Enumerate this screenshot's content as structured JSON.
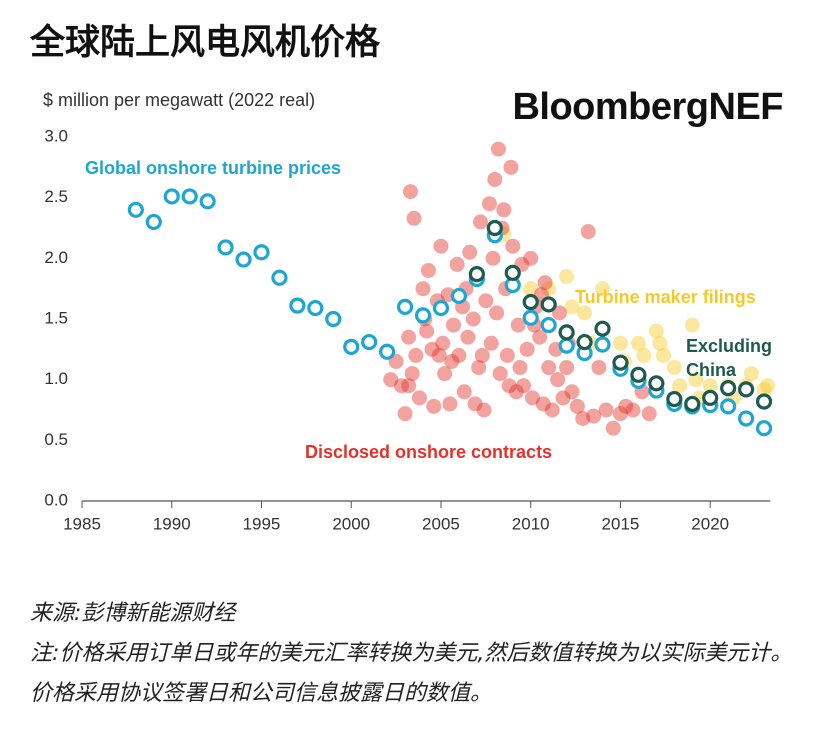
{
  "chart_data": {
    "type": "scatter",
    "title": "全球陆上风电风机价格",
    "y_label": "$ million per megawatt (2022 real)",
    "brand": "BloombergNEF",
    "source": "来源:彭博新能源财经",
    "note": "注:价格采用订单日或年的美元汇率转换为美元,然后数值转换为以实际美元计。价格采用协议签署日和公司信息披露日的数值。",
    "xlim": [
      1985,
      2024
    ],
    "ylim": [
      0,
      3
    ],
    "xticks": [
      1985,
      1990,
      1995,
      2000,
      2005,
      2010,
      2015,
      2020
    ],
    "yticks": [
      {
        "value": 0,
        "label": "0.0"
      },
      0.5,
      {
        "value": 1,
        "label": "1.0"
      },
      1.5,
      {
        "value": 2,
        "label": "2.0"
      },
      2.5,
      {
        "value": 3,
        "label": "3.0"
      }
    ],
    "grid": false,
    "series": [
      {
        "name": "Global onshore turbine prices",
        "color": "#1ea6d3",
        "marker": "open",
        "x": [
          1988,
          1989,
          1990,
          1991,
          1992,
          1993,
          1994,
          1995,
          1996,
          1997,
          1998,
          1999,
          2000,
          2001,
          2002,
          2003,
          2004,
          2005,
          2006,
          2007,
          2008,
          2009,
          2010,
          2011,
          2012,
          2013,
          2014,
          2015,
          2016,
          2017,
          2018,
          2019,
          2020,
          2021,
          2022,
          2023
        ],
        "values": [
          2.4,
          2.3,
          2.51,
          2.51,
          2.47,
          2.09,
          1.99,
          2.05,
          1.84,
          1.61,
          1.59,
          1.5,
          1.27,
          1.31,
          1.23,
          1.6,
          1.53,
          1.59,
          1.69,
          1.83,
          2.19,
          1.78,
          1.51,
          1.45,
          1.28,
          1.22,
          1.29,
          1.09,
          0.99,
          0.91,
          0.8,
          0.78,
          0.79,
          0.78,
          0.68,
          0.6
        ]
      },
      {
        "name": "Turbine maker filings",
        "color": "#f7c928",
        "marker": "filled",
        "x": [
          2008.5,
          2009.0,
          2010.0,
          2011.0,
          2012.0,
          2012.3,
          2013.0,
          2013.3,
          2014.0,
          2015.0,
          2015.2,
          2016.0,
          2016.3,
          2017.0,
          2017.2,
          2017.4,
          2018.0,
          2018.3,
          2019.0,
          2019.2,
          2019.4,
          2020.0,
          2021.0,
          2021.3,
          2022.0,
          2022.3,
          2023.0,
          2023.2
        ],
        "values": [
          2.2,
          1.8,
          1.75,
          1.75,
          1.85,
          1.6,
          1.55,
          1.3,
          1.75,
          1.3,
          1.15,
          1.3,
          1.2,
          1.4,
          1.3,
          1.2,
          1.1,
          0.95,
          1.45,
          1.0,
          0.85,
          0.95,
          0.95,
          0.85,
          0.95,
          1.05,
          0.92,
          0.95
        ]
      },
      {
        "name": "Excluding China",
        "color": "#1d5a50",
        "marker": "open",
        "x": [
          2007,
          2008,
          2009,
          2010,
          2011,
          2012,
          2013,
          2014,
          2015,
          2016,
          2017,
          2018,
          2019,
          2020,
          2021,
          2022,
          2023
        ],
        "values": [
          1.87,
          2.25,
          1.88,
          1.64,
          1.62,
          1.39,
          1.31,
          1.42,
          1.14,
          1.04,
          0.97,
          0.84,
          0.8,
          0.85,
          0.93,
          0.92,
          0.82
        ]
      },
      {
        "name": "Disclosed onshore contracts",
        "color": "#e4322b",
        "marker": "filled",
        "x": [
          2002.2,
          2002.5,
          2002.8,
          2003.0,
          2003.2,
          2003.3,
          2003.5,
          2003.6,
          2003.8,
          2004.0,
          2004.1,
          2004.3,
          2004.5,
          2004.6,
          2004.8,
          2005.0,
          2005.1,
          2005.2,
          2005.4,
          2005.5,
          2005.7,
          2005.9,
          2006.0,
          2006.2,
          2006.3,
          2006.5,
          2006.6,
          2006.8,
          2007.0,
          2007.1,
          2007.2,
          2007.4,
          2007.5,
          2007.7,
          2007.8,
          2007.9,
          2008.0,
          2008.1,
          2008.2,
          2008.3,
          2008.5,
          2008.6,
          2008.7,
          2008.9,
          2009.0,
          2009.2,
          2009.3,
          2009.5,
          2009.6,
          2009.8,
          2010.0,
          2010.1,
          2010.3,
          2010.5,
          2010.7,
          2010.8,
          2011.0,
          2011.2,
          2011.4,
          2011.6,
          2011.8,
          2012.0,
          2012.3,
          2012.6,
          2012.9,
          2013.2,
          2013.5,
          2013.8,
          2014.2,
          2014.6,
          2015.0,
          2015.3,
          2015.7,
          2016.2,
          2016.6,
          2003.2,
          2003.4,
          2004.2,
          2005.6,
          2006.4,
          2007.3,
          2008.4,
          2008.8,
          2009.4,
          2010.2,
          2010.6,
          2011.5,
          2012.1,
          2006.9,
          2004.9
        ],
        "values": [
          1.0,
          1.15,
          0.95,
          0.72,
          1.35,
          2.55,
          2.33,
          1.2,
          0.85,
          1.75,
          1.5,
          1.9,
          1.25,
          0.78,
          1.65,
          2.1,
          1.3,
          1.05,
          1.7,
          0.8,
          1.45,
          1.95,
          1.2,
          1.6,
          0.9,
          1.35,
          2.05,
          1.5,
          1.85,
          1.1,
          2.3,
          0.75,
          1.65,
          2.45,
          1.3,
          2.0,
          2.65,
          1.55,
          2.9,
          1.05,
          2.4,
          1.75,
          1.2,
          2.75,
          2.1,
          0.9,
          1.45,
          1.95,
          0.95,
          1.25,
          2.0,
          0.85,
          1.6,
          1.35,
          0.8,
          1.8,
          1.1,
          0.75,
          1.25,
          1.55,
          0.85,
          1.1,
          0.9,
          0.78,
          0.68,
          2.22,
          0.7,
          1.1,
          0.75,
          0.6,
          0.72,
          0.78,
          0.75,
          0.9,
          0.72,
          0.95,
          1.05,
          1.4,
          1.15,
          1.75,
          1.2,
          2.25,
          0.95,
          1.1,
          1.45,
          1.7,
          1.0,
          1.3,
          0.8,
          1.2
        ]
      }
    ]
  }
}
